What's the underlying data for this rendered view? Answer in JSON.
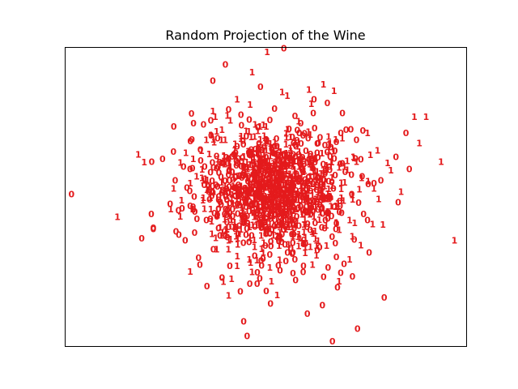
{
  "chart_data": {
    "type": "scatter",
    "title": "Random Projection of the Wine",
    "marker": "class digit",
    "color": "#e41a1c",
    "grid": false,
    "axes_ticks": false,
    "legend": "none",
    "xlim": [
      -6,
      6
    ],
    "ylim": [
      -6,
      6
    ],
    "points": [
      {
        "x": -5.8,
        "y": 0.1,
        "label": "0"
      },
      {
        "x": -3.35,
        "y": -1.3,
        "label": "0"
      },
      {
        "x": -3.35,
        "y": -1.25,
        "label": "0"
      },
      {
        "x": -3.4,
        "y": 1.4,
        "label": "0"
      },
      {
        "x": -2.75,
        "y": 1.8,
        "label": "0"
      },
      {
        "x": -2.6,
        "y": -0.55,
        "label": "0"
      },
      {
        "x": -2.35,
        "y": 0.35,
        "label": "0"
      },
      {
        "x": -2.15,
        "y": 2.95,
        "label": "0"
      },
      {
        "x": -1.2,
        "y": 5.3,
        "label": "0"
      },
      {
        "x": 0.05,
        "y": 5.8,
        "label": "1"
      },
      {
        "x": 0.55,
        "y": 5.95,
        "label": "0"
      },
      {
        "x": -0.4,
        "y": 5.0,
        "label": "1"
      },
      {
        "x": -0.55,
        "y": -5.6,
        "label": "0"
      },
      {
        "x": -0.65,
        "y": -5.0,
        "label": "0"
      },
      {
        "x": 2.0,
        "y": -5.8,
        "label": "0"
      },
      {
        "x": 2.75,
        "y": -5.3,
        "label": "0"
      },
      {
        "x": 3.55,
        "y": -4.05,
        "label": "0"
      },
      {
        "x": 4.45,
        "y": 3.2,
        "label": "1"
      },
      {
        "x": 4.8,
        "y": 3.2,
        "label": "1"
      },
      {
        "x": 4.6,
        "y": 2.15,
        "label": "1"
      },
      {
        "x": 5.65,
        "y": -1.75,
        "label": "1"
      },
      {
        "x": 5.25,
        "y": 1.4,
        "label": "1"
      },
      {
        "x": 3.65,
        "y": 1.35,
        "label": "1"
      },
      {
        "x": 4.05,
        "y": 0.2,
        "label": "1"
      },
      {
        "x": 3.2,
        "y": -1.1,
        "label": "1"
      },
      {
        "x": 2.85,
        "y": -1.95,
        "label": "1"
      },
      {
        "x": 2.2,
        "y": -3.4,
        "label": "1"
      },
      {
        "x": 1.3,
        "y": 4.3,
        "label": "1"
      },
      {
        "x": 2.05,
        "y": 4.25,
        "label": "1"
      },
      {
        "x": 4.2,
        "y": 2.55,
        "label": "0"
      },
      {
        "x": 4.3,
        "y": 1.1,
        "label": "0"
      },
      {
        "x": -1.1,
        "y": 3.5,
        "label": "0"
      },
      {
        "x": -1.85,
        "y": 2.9,
        "label": "0"
      },
      {
        "x": -2.45,
        "y": 1.2,
        "label": "0"
      },
      {
        "x": -2.7,
        "y": 0.65,
        "label": "0"
      },
      {
        "x": -0.15,
        "y": 4.4,
        "label": "0"
      },
      {
        "x": 1.45,
        "y": 3.9,
        "label": "0"
      },
      {
        "x": 2.3,
        "y": 3.35,
        "label": "0"
      },
      {
        "x": 3.05,
        "y": 2.55,
        "label": "1"
      },
      {
        "x": 3.35,
        "y": 1.85,
        "label": "1"
      },
      {
        "x": 2.85,
        "y": 1.5,
        "label": "0"
      },
      {
        "x": 3.45,
        "y": 0.65,
        "label": "0"
      },
      {
        "x": 3.05,
        "y": -0.95,
        "label": "0"
      },
      {
        "x": 2.35,
        "y": -2.7,
        "label": "0"
      },
      {
        "x": 2.15,
        "y": -3.65,
        "label": "0"
      },
      {
        "x": 1.7,
        "y": -4.35,
        "label": "0"
      },
      {
        "x": 1.25,
        "y": -4.7,
        "label": "0"
      },
      {
        "x": 0.15,
        "y": -4.3,
        "label": "0"
      },
      {
        "x": -0.75,
        "y": -3.8,
        "label": "0"
      },
      {
        "x": -1.75,
        "y": -3.6,
        "label": "0"
      },
      {
        "x": -2.25,
        "y": -3.0,
        "label": "1"
      },
      {
        "x": -2.0,
        "y": -2.45,
        "label": "0"
      },
      {
        "x": -2.4,
        "y": -1.75,
        "label": "0"
      },
      {
        "x": -2.55,
        "y": -0.8,
        "label": "1"
      },
      {
        "x": -2.85,
        "y": -0.3,
        "label": "0"
      },
      {
        "x": -2.2,
        "y": 2.3,
        "label": "0"
      },
      {
        "x": -1.5,
        "y": 3.2,
        "label": "1"
      },
      {
        "x": -0.85,
        "y": 3.9,
        "label": "1"
      },
      {
        "x": 0.65,
        "y": 4.05,
        "label": "1"
      },
      {
        "x": 1.85,
        "y": 3.75,
        "label": "0"
      },
      {
        "x": 0.9,
        "y": -3.35,
        "label": "0"
      },
      {
        "x": 0.35,
        "y": -3.95,
        "label": "1"
      },
      {
        "x": -0.25,
        "y": -3.5,
        "label": "0"
      },
      {
        "x": -1.3,
        "y": -3.25,
        "label": "0"
      },
      {
        "x": 2.6,
        "y": -3.2,
        "label": "0"
      },
      {
        "x": 3.1,
        "y": -2.25,
        "label": "0"
      },
      {
        "x": 3.75,
        "y": 1.05,
        "label": "1"
      },
      {
        "x": 3.9,
        "y": 1.6,
        "label": "0"
      },
      {
        "x": 2.55,
        "y": 2.7,
        "label": "0"
      },
      {
        "x": -2.05,
        "y": -0.9,
        "label": "0"
      }
    ],
    "dense_cluster": {
      "count": 1200,
      "center": {
        "x": 0.2,
        "y": 0.25
      },
      "spread": {
        "x": 1.15,
        "y": 1.25
      },
      "labels": [
        "0",
        "1"
      ]
    }
  }
}
